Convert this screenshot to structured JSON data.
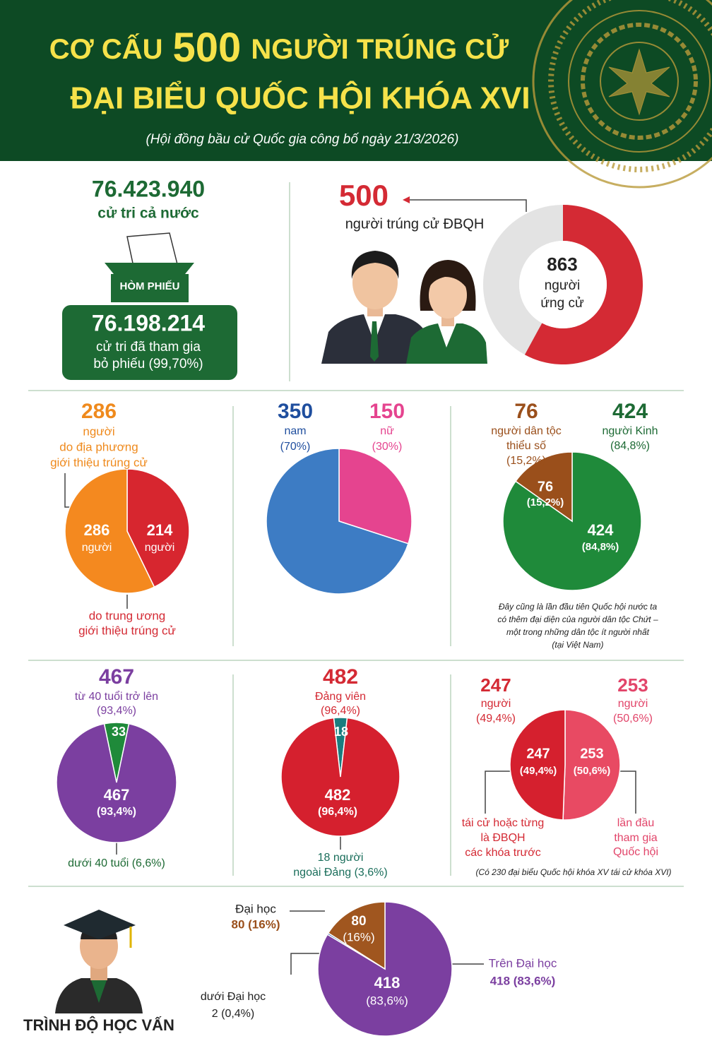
{
  "header": {
    "title_a": "CƠ CẤU",
    "title_number": "500",
    "title_b": "NGƯỜI TRÚNG CỬ",
    "title_line2": "ĐẠI BIỂU QUỐC HỘI KHÓA XVI",
    "subtitle": "(Hội đồng bầu cử Quốc gia công bố ngày 21/3/2026)"
  },
  "voters": {
    "total": "76.423.940",
    "total_label": "cử tri cả nước",
    "ballot_box": "HÒM PHIẾU",
    "voted": "76.198.214",
    "voted_label": [
      "cử tri đã tham gia",
      "bỏ phiếu (99,70%)"
    ]
  },
  "results": {
    "elected": 500,
    "elected_label": "người trúng cử ĐBQH",
    "candidates": 863,
    "candidates_label": [
      "người",
      "ứng cử"
    ],
    "color": "#d42a34"
  },
  "origin": {
    "slices": [
      {
        "value": 214,
        "color": "#d7262f",
        "unit": "người",
        "label": [
          "do trung ương",
          "giới thiệu trúng cử"
        ]
      },
      {
        "value": 286,
        "color": "#f4891f",
        "unit": "người",
        "label": [
          "người",
          "do địa phương",
          "giới thiệu trúng cử"
        ]
      }
    ]
  },
  "gender": {
    "slices": [
      {
        "value": 150,
        "color": "#e5448f",
        "label": "nữ",
        "pct": "(30%)"
      },
      {
        "value": 350,
        "color": "#3d7cc4",
        "label": "nam",
        "pct": "(70%)"
      }
    ]
  },
  "ethnic": {
    "slices": [
      {
        "value": 424,
        "color": "#1f8a3a",
        "label": [
          "người Kinh"
        ],
        "pct": "(84,8%)"
      },
      {
        "value": 76,
        "color": "#9a4f1b",
        "label": [
          "người dân tộc",
          "thiểu số"
        ],
        "pct": "(15,2%)"
      }
    ],
    "note": [
      "Đây cũng là lần đầu tiên Quốc hội nước ta",
      "có thêm đại diện của người dân tộc Chứt –",
      "một trong những dân tộc ít người nhất",
      "(tại Việt Nam)"
    ]
  },
  "age": {
    "slices": [
      {
        "value": 33,
        "color": "#1f8a3a",
        "label": "dưới 40 tuổi (6,6%)"
      },
      {
        "value": 467,
        "color": "#7b3fa0",
        "label": "từ 40 tuổi trở lên",
        "pct": "(93,4%)"
      }
    ]
  },
  "party": {
    "slices": [
      {
        "value": 18,
        "color": "#1a7d7f",
        "label": [
          "18 người",
          "ngoài Đảng (3,6%)"
        ]
      },
      {
        "value": 482,
        "color": "#d5202e",
        "label": "Đảng viên",
        "pct": "(96,4%)"
      }
    ]
  },
  "reelection": {
    "slices": [
      {
        "value": 253,
        "color": "#e84a63",
        "unit": "người",
        "pct": "(50,6%)",
        "label": [
          "lần đầu",
          "tham gia",
          "Quốc hội"
        ]
      },
      {
        "value": 247,
        "color": "#d5202e",
        "unit": "người",
        "pct": "(49,4%)",
        "label": [
          "tái cử hoặc từng",
          "là ĐBQH",
          "các khóa trước"
        ]
      }
    ],
    "note": "(Có 230 đại biểu Quốc hội khóa XV tái cử khóa XVI)"
  },
  "education": {
    "title": "TRÌNH ĐỘ HỌC VẤN",
    "slices": [
      {
        "value": 418,
        "color": "#7b3fa0",
        "pct": "(83,6%)",
        "label": "Trên Đại học",
        "caption": "418 (83,6%)"
      },
      {
        "value": 2,
        "color": "#2c5aa8",
        "label": "dưới Đại học",
        "caption": "2 (0,4%)"
      },
      {
        "value": 80,
        "color": "#a0561f",
        "pct": "(16%)",
        "label": "Đại học",
        "caption": "80 (16%)"
      }
    ]
  }
}
